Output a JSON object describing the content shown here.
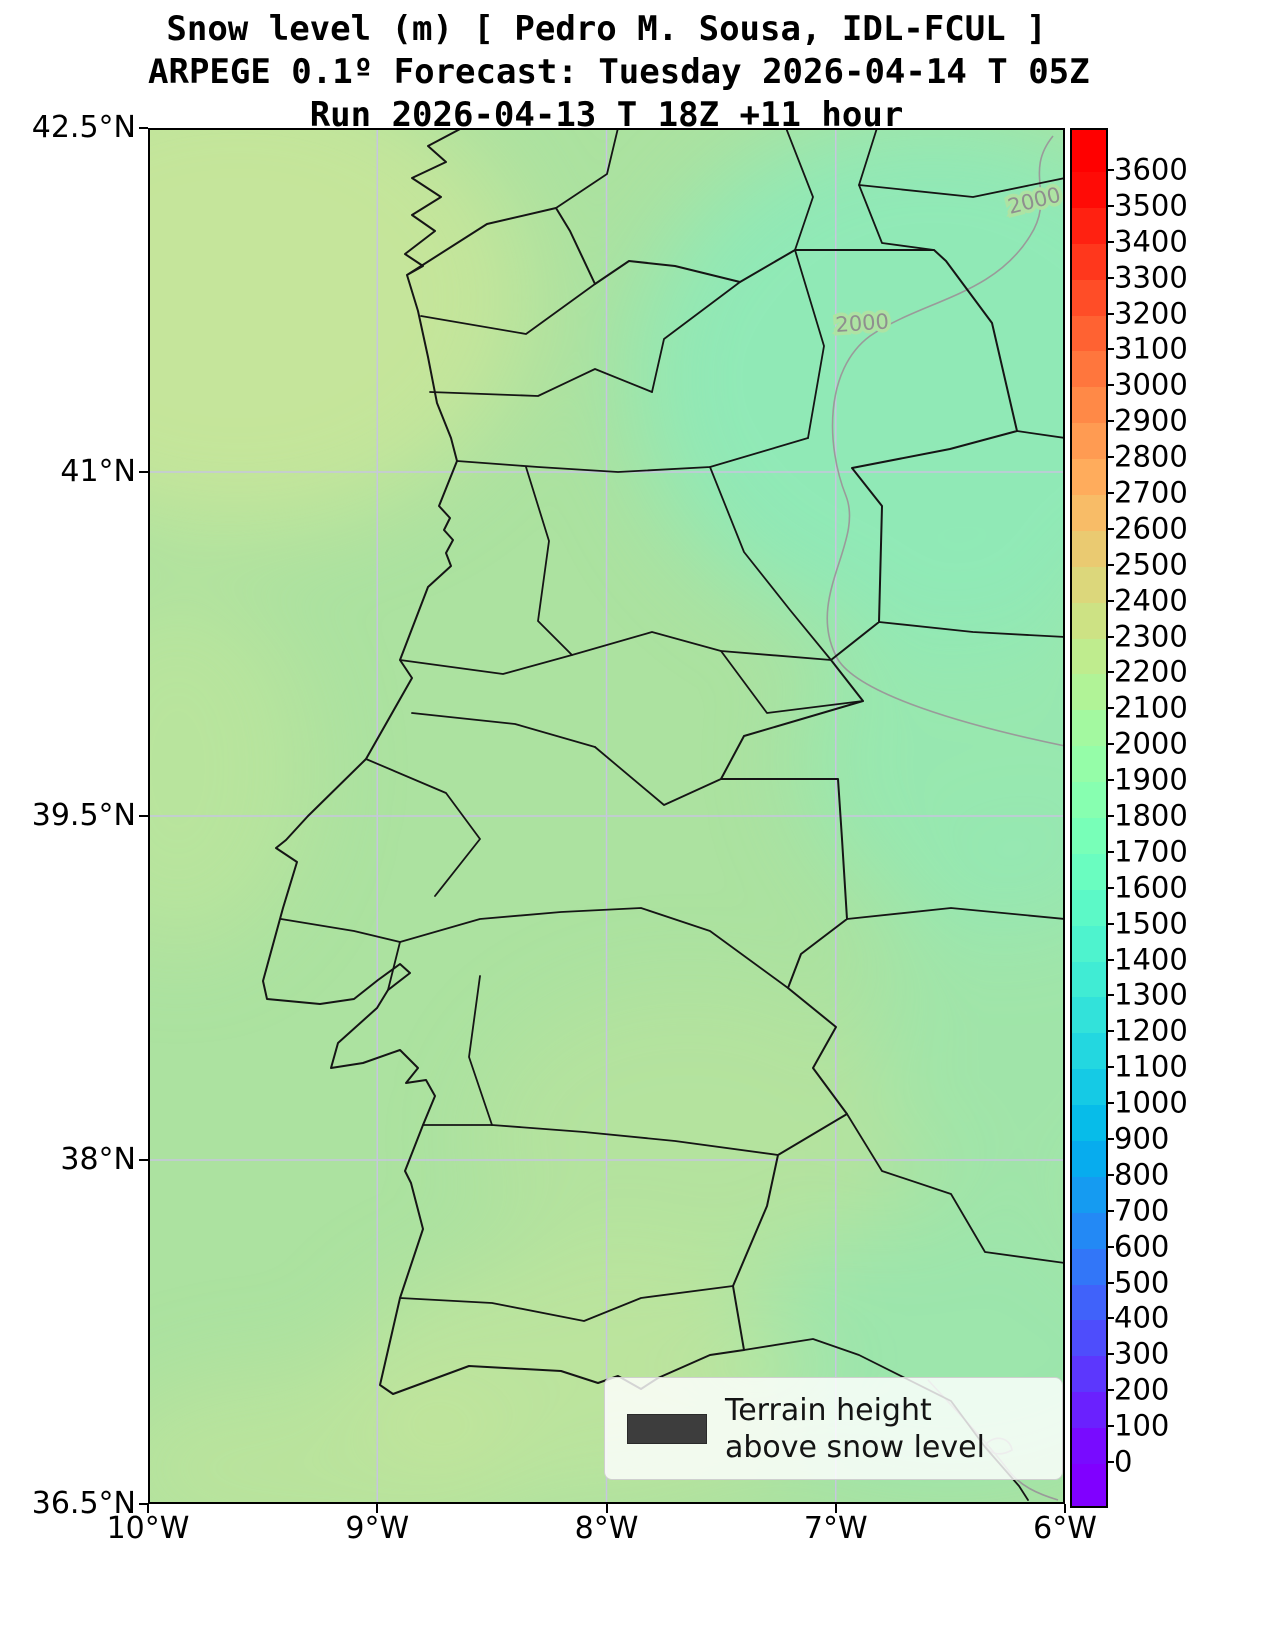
{
  "figure": {
    "title_line1": "Snow level (m) [ Pedro M. Sousa, IDL-FCUL ]",
    "title_line2": "ARPEGE 0.1º Forecast: Tuesday 2026-04-14 T 05Z",
    "title_line3": "Run 2026-04-13 T 18Z +11 hour"
  },
  "axes": {
    "y_tick_labels": [
      "42.5°N",
      "41°N",
      "39.5°N",
      "38°N",
      "36.5°N"
    ],
    "y_tick_values": [
      42.5,
      41,
      39.5,
      38,
      36.5
    ],
    "x_tick_labels": [
      "10°W",
      "9°W",
      "8°W",
      "7°W",
      "6°W"
    ],
    "x_tick_values": [
      -10,
      -9,
      -8,
      -7,
      -6
    ],
    "lat_range": [
      36.5,
      42.5
    ],
    "lon_range": [
      -10,
      -6
    ],
    "grid_lats": [
      41,
      39.5,
      38
    ],
    "grid_lons": [
      -9,
      -8,
      -7
    ]
  },
  "colorbar": {
    "min": 0,
    "max": 3600,
    "step": 100,
    "colormap": "rainbow",
    "ticks": [
      0,
      100,
      200,
      300,
      400,
      500,
      600,
      700,
      800,
      900,
      1000,
      1100,
      1200,
      1300,
      1400,
      1500,
      1600,
      1700,
      1800,
      1900,
      2000,
      2100,
      2200,
      2300,
      2400,
      2500,
      2600,
      2700,
      2800,
      2900,
      3000,
      3100,
      3200,
      3300,
      3400,
      3500,
      3600
    ]
  },
  "legend": {
    "label_line1": "Terrain height",
    "label_line2": "above snow level",
    "swatch_color": "#3d3d3d"
  },
  "map_overlay": {
    "contour_level": 2000,
    "contour_labels": [
      "2000",
      "2000"
    ]
  },
  "colors": {
    "field_base": "#ace2a0",
    "field_teal": "#8ee9b7",
    "field_khaki": "#c8e69a",
    "grid": "#c6c6de",
    "boundary": "#151515",
    "contour": "#9a9a9a",
    "contour_label": "#8f8f8f"
  },
  "chart_data": {
    "type": "heatmap",
    "title": "Snow level (m)",
    "model": "ARPEGE 0.1º",
    "valid_time": "Tuesday 2026-04-14 T 05Z",
    "run": "2026-04-13 T 18Z +11 hour",
    "lon_range_deg_west": [
      10,
      6
    ],
    "lat_range_deg_north": [
      36.5,
      42.5
    ],
    "colorbar_range_m": [
      0,
      3600
    ],
    "colorbar_step_m": 100,
    "approx_field_summary": "Snow level around 2000-2300 m over most of Portugal; 1800-2000 m (teal) in the northeast interior; ~2300 m (khaki) patches over the NW ocean corner and southern areas; 2000 m contour crosses the NE corner"
  }
}
